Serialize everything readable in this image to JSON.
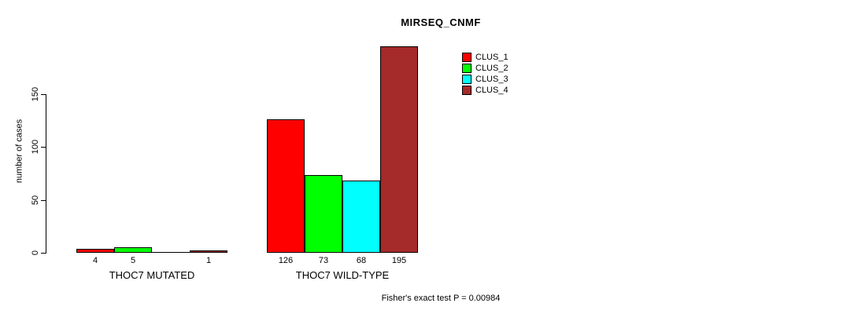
{
  "chart_data": {
    "type": "bar",
    "title": "MIRSEQ_CNMF",
    "ylabel": "number of cases",
    "xlabel": "",
    "annotation": "Fisher's exact test P = 0.00984",
    "yticks": [
      0,
      50,
      100,
      150
    ],
    "ylim": [
      0,
      195
    ],
    "grid": false,
    "legend_position": "top-right",
    "background_color": "#ffffff",
    "text_color": "#000000",
    "series": [
      {
        "name": "CLUS_1",
        "color": "#ff0000"
      },
      {
        "name": "CLUS_2",
        "color": "#00ff00"
      },
      {
        "name": "CLUS_3",
        "color": "#00ffff"
      },
      {
        "name": "CLUS_4",
        "color": "#a52a2a"
      }
    ],
    "groups": [
      {
        "label": "THOC7 MUTATED",
        "values": [
          4,
          5,
          0,
          1
        ],
        "bar_labels": [
          "4",
          "5",
          "",
          "1"
        ]
      },
      {
        "label": "THOC7 WILD-TYPE",
        "values": [
          126,
          73,
          68,
          195
        ],
        "bar_labels": [
          "126",
          "73",
          "68",
          "195"
        ]
      }
    ]
  }
}
